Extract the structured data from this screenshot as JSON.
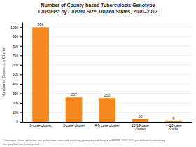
{
  "chart_data": {
    "type": "bar",
    "title": "Number of County-based Tuberculosis Genotype\nClusters* by Cluster Size, United States, 2010–2012",
    "categories": [
      "2-case cluster",
      "3-case cluster",
      "4-9 case cluster",
      "10-19 case\ncluster",
      ">=20 case\ncluster"
    ],
    "values": [
      996,
      257,
      250,
      30,
      9
    ],
    "color": "#F5881F",
    "ylabel": "Number of Cases in a Cluster",
    "ylim": [
      0,
      1050
    ],
    "yticks": [
      0,
      100,
      200,
      300,
      400,
      500,
      600,
      700,
      800,
      900,
      1000
    ],
    "grid": true,
    "data_labels": true,
    "footnote": "* Genotype cluster definitions are at least two cases with matching genotypes and living in a MMWR 2010-2012 geo-defined cluster during\nthe specified time frame period."
  }
}
